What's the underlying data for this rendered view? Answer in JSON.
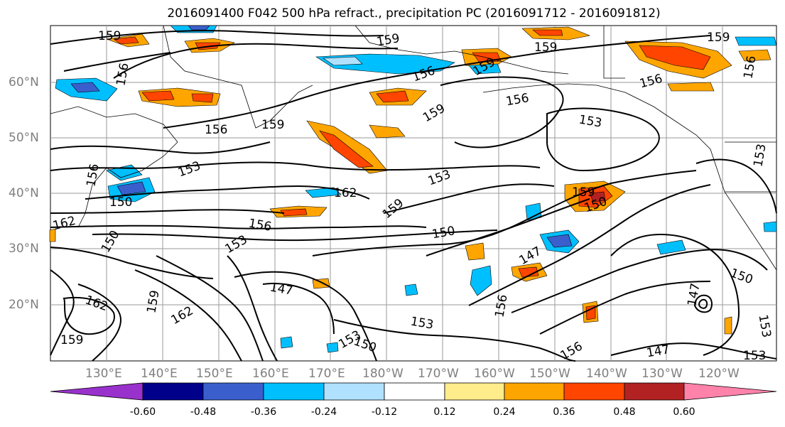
{
  "title": "2016091400 F042 500 hPa refract., precipitation PC (2016091712 - 2016091812)",
  "map": {
    "lat_labels": [
      "60°N",
      "50°N",
      "40°N",
      "30°N",
      "20°N"
    ],
    "lon_labels": [
      "130°E",
      "140°E",
      "150°E",
      "160°E",
      "170°E",
      "180°W",
      "170°W",
      "160°W",
      "150°W",
      "140°W",
      "130°W",
      "120°W"
    ],
    "contour_labels": [
      "159",
      "156",
      "159",
      "156",
      "159",
      "159",
      "156",
      "159",
      "156",
      "159",
      "156",
      "153",
      "156",
      "153",
      "153",
      "162",
      "159",
      "150",
      "162",
      "150",
      "156",
      "153",
      "150",
      "147",
      "159",
      "150",
      "156",
      "162",
      "159",
      "147",
      "153",
      "150",
      "162",
      "159",
      "153",
      "156",
      "147",
      "150",
      "147",
      "153",
      "159",
      "156",
      "153",
      "153"
    ]
  },
  "colorbar": {
    "tick_labels": [
      "-0.60",
      "-0.48",
      "-0.36",
      "-0.24",
      "-0.12",
      "0.12",
      "0.24",
      "0.36",
      "0.48",
      "0.60"
    ],
    "colors": [
      "#9932cc",
      "#00008b",
      "#3a5fcd",
      "#00bfff",
      "#b0e2ff",
      "#ffffff",
      "#ffec8b",
      "#ffa500",
      "#ff4500",
      "#b22222",
      "#ff82ab"
    ]
  }
}
